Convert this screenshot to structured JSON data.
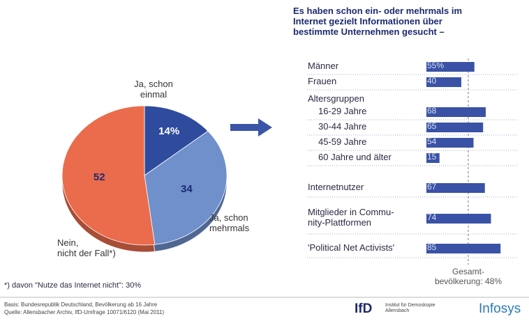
{
  "chart_data": [
    {
      "type": "pie",
      "categories": [
        "Ja, schon\neinmal",
        "Ja, schon\nmehrmals",
        "Nein,\nnicht der Fall*)"
      ],
      "values": [
        14,
        34,
        52
      ],
      "value_labels": [
        "14%",
        "34",
        "52"
      ],
      "colors": [
        "#2f4b9e",
        "#7090cc",
        "#ea6c4c"
      ]
    },
    {
      "type": "hbar",
      "title": "Es haben schon ein- oder mehrmals im\nInternet gezielt Informationen über\nbestimmte Unternehmen gesucht –",
      "group_label": "Altersgruppen",
      "categories": [
        "Männer",
        "Frauen",
        "16-29 Jahre",
        "30-44 Jahre",
        "45-59 Jahre",
        "60 Jahre und älter",
        "Internetnutzer",
        "Mitglieder in Commu-\nnity-Plattformen",
        "'Political Net Activists'"
      ],
      "values": [
        55,
        40,
        68,
        65,
        54,
        15,
        67,
        74,
        85
      ],
      "value_labels": [
        "55%",
        "40",
        "68",
        "65",
        "54",
        "15",
        "67",
        "74",
        "85"
      ],
      "color": "#3a52a6",
      "reference": {
        "value": 48,
        "label": "Gesamt-\nbevölkerung: 48%"
      }
    }
  ],
  "footnote": "*) davon \"Nutze das Internet nicht\": 30%",
  "source": [
    "Basis: Bundesrepublik Deutschland, Bevölkerung ab 16 Jahre",
    "Quelle: Allensbacher Archiv, IfD-Umfrage 10071/6120 (Mai 2011)"
  ],
  "logos": {
    "ifd": "IfD",
    "ifd_name": "Institut für Demoskopie\nAllensbach",
    "infosys": "Infosys"
  }
}
